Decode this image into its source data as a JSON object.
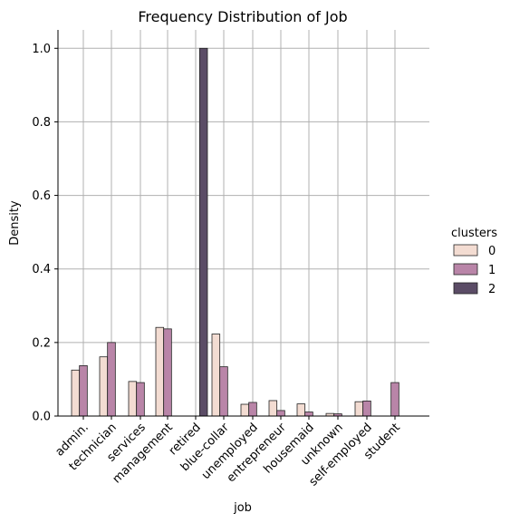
{
  "chart_data": {
    "type": "bar",
    "title": "Frequency Distribution of Job",
    "xlabel": "job",
    "ylabel": "Density",
    "ylim": [
      0,
      1.05
    ],
    "yticks": [
      "0.0",
      "0.2",
      "0.4",
      "0.6",
      "0.8",
      "1.0"
    ],
    "ytick_values": [
      0.0,
      0.2,
      0.4,
      0.6,
      0.8,
      1.0
    ],
    "grid": true,
    "legend_position": "right",
    "categories": [
      "admin.",
      "technician",
      "services",
      "management",
      "retired",
      "blue-collar",
      "unemployed",
      "entrepreneur",
      "housemaid",
      "unknown",
      "self-employed",
      "student"
    ],
    "legend_title": "clusters",
    "series": [
      {
        "name": "0",
        "color": "#f3dcd2",
        "values": [
          0.125,
          0.161,
          0.094,
          0.241,
          null,
          0.223,
          0.032,
          0.042,
          0.033,
          0.007,
          0.039,
          null
        ]
      },
      {
        "name": "1",
        "color": "#b985a8",
        "values": [
          0.137,
          0.2,
          0.091,
          0.237,
          null,
          0.134,
          0.037,
          0.015,
          0.011,
          0.006,
          0.041,
          0.091
        ]
      },
      {
        "name": "2",
        "color": "#5b4c66",
        "values": [
          null,
          null,
          null,
          null,
          1.0,
          null,
          null,
          null,
          null,
          null,
          null,
          null
        ]
      }
    ]
  }
}
